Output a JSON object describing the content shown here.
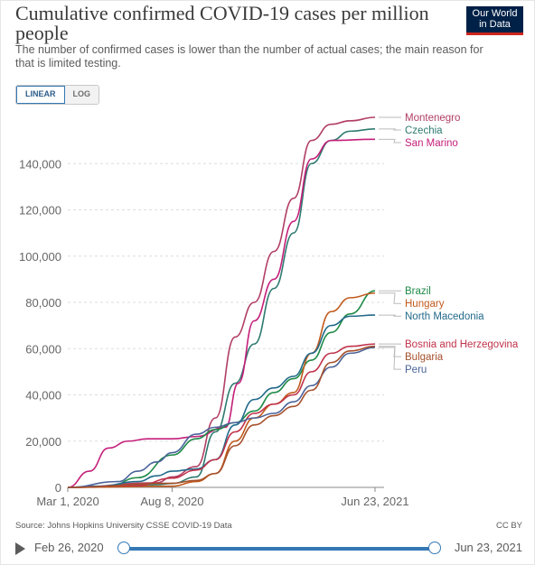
{
  "header": {
    "title": "Cumulative confirmed COVID-19 cases per million people",
    "subtitle": "The number of confirmed cases is lower than the number of actual cases; the main reason for that is limited testing.",
    "logo_line1": "Our World",
    "logo_line2": "in Data"
  },
  "scale_toggle": {
    "linear": "LINEAR",
    "log": "LOG",
    "selected": "LINEAR"
  },
  "footer": {
    "source": "Source: Johns Hopkins University CSSE COVID-19 Data",
    "license": "CC BY"
  },
  "timeline": {
    "start_label": "Feb 26, 2020",
    "end_label": "Jun 23, 2021",
    "start_fraction": 0,
    "end_fraction": 1
  },
  "colors": {
    "Montenegro": "#b13e65",
    "Czechia": "#2e7a70",
    "San Marino": "#c41f7a",
    "Brazil": "#1e8a47",
    "Hungary": "#c15a1c",
    "North Macedonia": "#226a8a",
    "Bosnia and Herzegovina": "#c0324a",
    "Peru": "#4a6399",
    "Bulgaria": "#a6502c"
  },
  "chart_data": {
    "type": "line",
    "title": "Cumulative confirmed COVID-19 cases per million people",
    "xlabel": "",
    "ylabel": "",
    "x_tick_labels": [
      "Mar 1, 2020",
      "Aug 8, 2020",
      "Jun 23, 2021"
    ],
    "y_ticks": [
      0,
      20000,
      40000,
      60000,
      80000,
      100000,
      120000,
      140000
    ],
    "y_tick_labels": [
      "0",
      "20,000",
      "40,000",
      "60,000",
      "80,000",
      "100,000",
      "120,000",
      "140,000"
    ],
    "xlim": [
      "2020-02-26",
      "2021-06-23"
    ],
    "ylim": [
      0,
      160000
    ],
    "grid": "horizontal dashed",
    "legend": "right, labels at line ends",
    "series": [
      {
        "name": "Montenegro",
        "x": [
          "2020-02-26",
          "2020-07-15",
          "2020-08-08",
          "2020-09-15",
          "2020-10-15",
          "2020-11-15",
          "2020-12-15",
          "2021-01-15",
          "2021-02-15",
          "2021-03-15",
          "2021-04-15",
          "2021-05-15",
          "2021-06-23"
        ],
        "values": [
          0,
          2000,
          4500,
          9000,
          30000,
          65000,
          80000,
          102000,
          125000,
          150000,
          157000,
          158500,
          160000
        ]
      },
      {
        "name": "Czechia",
        "x": [
          "2020-02-26",
          "2020-07-15",
          "2020-08-08",
          "2020-09-15",
          "2020-10-15",
          "2020-11-15",
          "2020-12-15",
          "2021-01-15",
          "2021-02-15",
          "2021-03-15",
          "2021-04-15",
          "2021-05-15",
          "2021-06-23"
        ],
        "values": [
          0,
          1200,
          1700,
          4500,
          24000,
          45000,
          62000,
          86000,
          110000,
          140000,
          150000,
          154000,
          155000
        ]
      },
      {
        "name": "San Marino",
        "x": [
          "2020-02-26",
          "2020-03-31",
          "2020-04-30",
          "2020-05-31",
          "2020-06-30",
          "2020-08-08",
          "2020-09-15",
          "2020-10-31",
          "2020-11-20",
          "2020-12-15",
          "2021-01-15",
          "2021-02-15",
          "2021-03-15",
          "2021-04-15",
          "2021-06-23"
        ],
        "values": [
          0,
          7000,
          17000,
          20000,
          21000,
          21000,
          22000,
          26000,
          45000,
          72000,
          90000,
          115000,
          142000,
          150000,
          150500
        ]
      },
      {
        "name": "Brazil",
        "x": [
          "2020-02-26",
          "2020-05-01",
          "2020-06-15",
          "2020-08-08",
          "2020-09-15",
          "2020-10-15",
          "2020-11-15",
          "2020-12-15",
          "2021-01-15",
          "2021-02-15",
          "2021-03-15",
          "2021-04-15",
          "2021-05-15",
          "2021-06-23"
        ],
        "values": [
          0,
          400,
          4200,
          14000,
          21000,
          25000,
          28000,
          33000,
          41000,
          47000,
          55000,
          67000,
          75000,
          85000
        ]
      },
      {
        "name": "Hungary",
        "x": [
          "2020-02-26",
          "2020-08-08",
          "2020-09-15",
          "2020-10-15",
          "2020-11-15",
          "2020-12-15",
          "2021-01-15",
          "2021-02-15",
          "2021-03-15",
          "2021-04-15",
          "2021-05-15",
          "2021-06-23"
        ],
        "values": [
          0,
          500,
          2500,
          6000,
          20000,
          30000,
          36000,
          41000,
          58000,
          76000,
          82000,
          84000
        ]
      },
      {
        "name": "North Macedonia",
        "x": [
          "2020-02-26",
          "2020-04-15",
          "2020-06-15",
          "2020-07-15",
          "2020-08-08",
          "2020-09-15",
          "2020-10-15",
          "2020-11-15",
          "2020-12-15",
          "2021-01-15",
          "2021-02-15",
          "2021-03-15",
          "2021-04-15",
          "2021-05-15",
          "2021-06-23"
        ],
        "values": [
          0,
          500,
          2500,
          5000,
          7000,
          8000,
          12000,
          27000,
          38000,
          43000,
          48000,
          58000,
          70000,
          74000,
          74500
        ]
      },
      {
        "name": "Bosnia and Herzegovina",
        "x": [
          "2020-02-26",
          "2020-06-15",
          "2020-08-08",
          "2020-09-15",
          "2020-10-15",
          "2020-11-15",
          "2020-12-15",
          "2021-01-15",
          "2021-02-15",
          "2021-03-15",
          "2021-04-15",
          "2021-05-15",
          "2021-06-23"
        ],
        "values": [
          0,
          800,
          4000,
          7500,
          12000,
          24000,
          32000,
          36000,
          40000,
          50000,
          58000,
          61000,
          62000
        ]
      },
      {
        "name": "Peru",
        "x": [
          "2020-02-26",
          "2020-05-15",
          "2020-06-15",
          "2020-07-15",
          "2020-08-08",
          "2020-09-15",
          "2020-10-15",
          "2020-11-15",
          "2020-12-15",
          "2021-01-15",
          "2021-02-15",
          "2021-03-15",
          "2021-04-15",
          "2021-05-15",
          "2021-06-23"
        ],
        "values": [
          0,
          2500,
          7000,
          11000,
          15000,
          23000,
          26000,
          28000,
          30000,
          32000,
          37000,
          44000,
          52000,
          58000,
          60500
        ]
      },
      {
        "name": "Bulgaria",
        "x": [
          "2020-02-26",
          "2020-08-08",
          "2020-09-15",
          "2020-10-15",
          "2020-11-15",
          "2020-12-15",
          "2021-01-15",
          "2021-02-15",
          "2021-03-15",
          "2021-04-15",
          "2021-05-15",
          "2021-06-23"
        ],
        "values": [
          0,
          1800,
          3000,
          6000,
          18000,
          27000,
          31000,
          35000,
          42000,
          54000,
          59000,
          61000
        ]
      }
    ]
  }
}
